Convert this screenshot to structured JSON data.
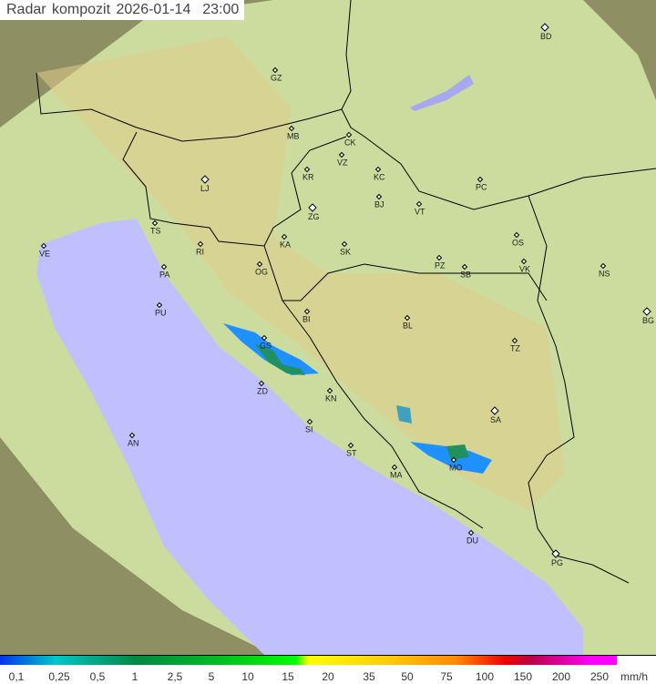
{
  "title": {
    "label": "Radar kompozit",
    "date": "2026-01-14",
    "time": "23:00"
  },
  "legend": {
    "ticks": [
      "0,1",
      "0,25",
      "0,5",
      "1",
      "2,5",
      "5",
      "10",
      "15",
      "20",
      "35",
      "50",
      "75",
      "100",
      "150",
      "200",
      "250"
    ],
    "unit": "mm/h"
  },
  "colors": {
    "land": "#c8d89a",
    "sea": "#c0c0ff",
    "outside_coverage": "#9a9a6a",
    "border": "#000000"
  },
  "cities": [
    "GZ",
    "BD",
    "MB",
    "CK",
    "VZ",
    "KR",
    "KC",
    "PC",
    "LJ",
    "BJ",
    "ZG",
    "VT",
    "TS",
    "VE",
    "RI",
    "KA",
    "SK",
    "OS",
    "PZ",
    "SB",
    "VK",
    "NS",
    "PA",
    "OG",
    "PU",
    "BI",
    "BL",
    "BG",
    "GS",
    "TZ",
    "ZD",
    "KN",
    "SA",
    "AN",
    "SI",
    "ST",
    "MO",
    "MA",
    "DU",
    "PG"
  ]
}
